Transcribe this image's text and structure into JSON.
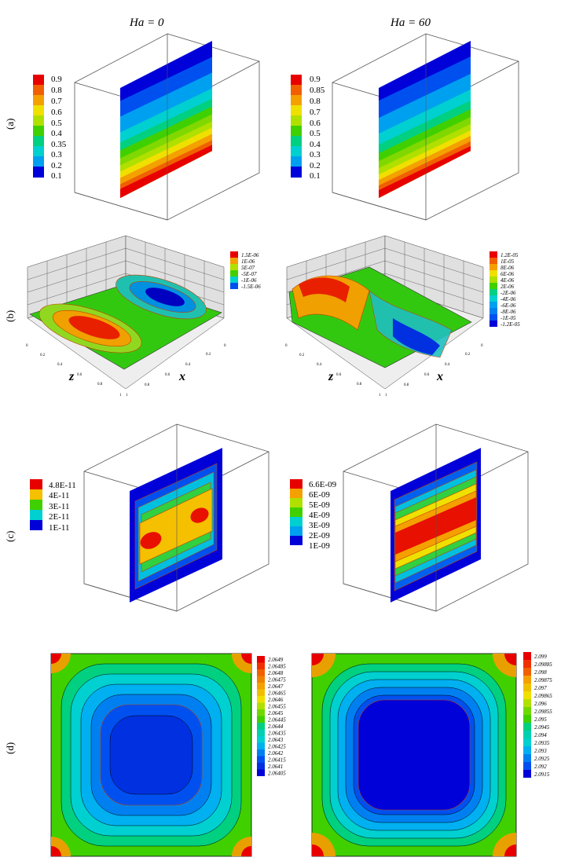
{
  "columns": [
    "Ha = 0",
    "Ha = 60"
  ],
  "row_labels": [
    "(a)",
    "(b)",
    "(c)",
    "(d)"
  ],
  "axis_labels": {
    "z": "z",
    "x": "x"
  },
  "b_ticks": {
    "z": [
      "0",
      "0.2",
      "0.4",
      "0.6",
      "0.8",
      "1"
    ],
    "x": [
      "1",
      "0.8",
      "0.6",
      "0.4",
      "0.2",
      "0"
    ]
  },
  "legends": {
    "a_left": [
      "0.9",
      "0.8",
      "0.7",
      "0.6",
      "0.5",
      "0.4",
      "0.35",
      "0.3",
      "0.2",
      "0.1"
    ],
    "a_right": [
      "0.9",
      "0.85",
      "0.8",
      "0.7",
      "0.6",
      "0.5",
      "0.4",
      "0.3",
      "0.2",
      "0.1"
    ],
    "b_left": [
      "1.5E-06",
      "1E-06",
      "5E-07",
      "-5E-07",
      "-1E-06",
      "-1.5E-06"
    ],
    "b_right": [
      "1.2E-05",
      "1E-05",
      "8E-06",
      "6E-06",
      "4E-06",
      "2E-06",
      "-2E-06",
      "-4E-06",
      "-6E-06",
      "-8E-06",
      "-1E-05",
      "-1.2E-05"
    ],
    "c_left": [
      "4.8E-11",
      "4E-11",
      "3E-11",
      "2E-11",
      "1E-11"
    ],
    "c_right": [
      "6.6E-09",
      "6E-09",
      "5E-09",
      "4E-09",
      "3E-09",
      "2E-09",
      "1E-09"
    ],
    "d_left": [
      "2.0649",
      "2.06485",
      "2.0648",
      "2.06475",
      "2.0647",
      "2.06465",
      "2.0646",
      "2.06455",
      "2.0645",
      "2.06445",
      "2.0644",
      "2.06435",
      "2.0643",
      "2.06425",
      "2.0642",
      "2.06415",
      "2.0641",
      "2.06405"
    ],
    "d_right": [
      "2.099",
      "2.09885",
      "2.098",
      "2.09875",
      "2.097",
      "2.09865",
      "2.096",
      "2.09855",
      "2.095",
      "2.0945",
      "2.094",
      "2.0935",
      "2.093",
      "2.0925",
      "2.092",
      "2.0915"
    ]
  },
  "palette": [
    "#e80000",
    "#f06000",
    "#f4a000",
    "#f0e000",
    "#b0e000",
    "#40d000",
    "#00d080",
    "#00d0d0",
    "#00a0f0",
    "#0050f0",
    "#0000d8"
  ]
}
